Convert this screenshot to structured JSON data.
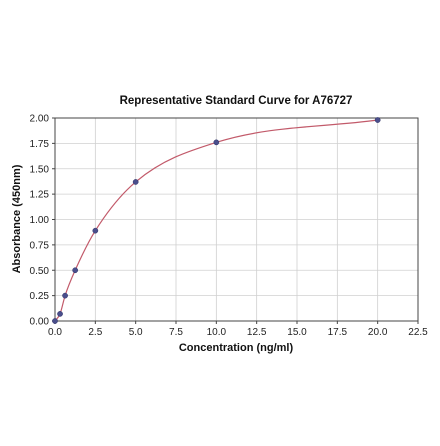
{
  "chart_data": {
    "type": "scatter",
    "title": "Representative Standard Curve for A76727",
    "xlabel": "Concentration (ng/ml)",
    "ylabel": "Absorbance (450nm)",
    "xlim": [
      0,
      22.5
    ],
    "ylim": [
      0,
      2.0
    ],
    "x_ticks": [
      "0.0",
      "2.5",
      "5.0",
      "7.5",
      "10.0",
      "12.5",
      "15.0",
      "17.5",
      "20.0",
      "22.5"
    ],
    "y_ticks": [
      "0.00",
      "0.25",
      "0.50",
      "0.75",
      "1.00",
      "1.25",
      "1.50",
      "1.75",
      "2.00"
    ],
    "grid": true,
    "series": [
      {
        "points": [
          {
            "x": 0.0,
            "y": 0.0
          },
          {
            "x": 0.3125,
            "y": 0.07
          },
          {
            "x": 0.625,
            "y": 0.25
          },
          {
            "x": 1.25,
            "y": 0.5
          },
          {
            "x": 2.5,
            "y": 0.89
          },
          {
            "x": 5.0,
            "y": 1.37
          },
          {
            "x": 10.0,
            "y": 1.76
          },
          {
            "x": 20.0,
            "y": 1.98
          }
        ],
        "point_color": "#4a4e8c",
        "fit_curve": true,
        "curve_color": "#c25a6a"
      }
    ]
  }
}
